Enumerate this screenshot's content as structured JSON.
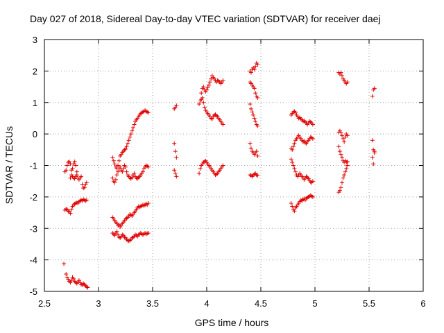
{
  "chart_data": {
    "type": "scatter",
    "title": "Day 027 of 2018, Sidereal Day-to-day VTEC variation (SDTVAR) for receiver daej",
    "xlabel": "GPS time / hours",
    "ylabel": "SDTVAR / TECUs",
    "xlim": [
      2.5,
      6
    ],
    "ylim": [
      -5,
      3
    ],
    "xticks": [
      2.5,
      3,
      3.5,
      4,
      4.5,
      5,
      5.5,
      6
    ],
    "yticks": [
      -5,
      -4,
      -3,
      -2,
      -1,
      0,
      1,
      2,
      3
    ],
    "xtick_labels": [
      "2.5",
      "3",
      "3.5",
      "4",
      "4.5",
      "5",
      "5.5",
      "6"
    ],
    "ytick_labels": [
      "-5",
      "-4",
      "-3",
      "-2",
      "-1",
      "0",
      "1",
      "2",
      "3"
    ],
    "grid": true,
    "marker": "+",
    "color": "#e00000",
    "series": [
      {
        "name": "s1",
        "x": [
          2.69,
          2.7,
          2.71,
          2.72,
          2.73,
          2.74,
          2.75,
          2.76,
          2.77,
          2.78,
          2.79,
          2.8,
          2.81,
          2.82,
          2.83,
          2.84,
          2.85,
          2.86,
          2.87,
          2.88,
          2.89
        ],
        "y": [
          -1.2,
          -1.15,
          -1.0,
          -0.9,
          -0.88,
          -0.95,
          -1.15,
          -1.35,
          -1.4,
          -1.42,
          -1.35,
          -1.3,
          -1.4,
          -1.45,
          -1.4,
          -1.35,
          -1.6,
          -1.72,
          -1.7,
          -1.6,
          -1.55
        ]
      },
      {
        "name": "s2",
        "x": [
          2.74,
          2.75,
          2.76,
          2.77,
          2.78,
          2.79,
          2.8
        ],
        "y": [
          -1.4,
          -1.3,
          -1.1,
          -0.95,
          -0.88,
          -1.0,
          -1.2
        ]
      },
      {
        "name": "s3",
        "x": [
          2.69,
          2.7,
          2.71,
          2.72,
          2.73,
          2.74,
          2.75,
          2.76,
          2.77,
          2.78,
          2.79,
          2.8,
          2.81,
          2.82,
          2.83,
          2.84,
          2.85,
          2.86,
          2.87,
          2.88,
          2.89
        ],
        "y": [
          -2.42,
          -2.38,
          -2.4,
          -2.45,
          -2.47,
          -2.52,
          -2.4,
          -2.3,
          -2.25,
          -2.22,
          -2.2,
          -2.18,
          -2.2,
          -2.15,
          -2.12,
          -2.1,
          -2.12,
          -2.08,
          -2.1,
          -2.12,
          -2.1
        ]
      },
      {
        "name": "s4",
        "x": [
          2.68,
          2.7,
          2.71,
          2.72,
          2.73,
          2.74,
          2.75,
          2.76,
          2.77,
          2.78,
          2.79,
          2.8,
          2.81,
          2.82,
          2.83,
          2.84,
          2.85,
          2.86,
          2.87,
          2.88,
          2.89,
          2.9
        ],
        "y": [
          -4.12,
          -4.45,
          -4.55,
          -4.62,
          -4.68,
          -4.72,
          -4.65,
          -4.55,
          -4.6,
          -4.68,
          -4.72,
          -4.75,
          -4.7,
          -4.65,
          -4.72,
          -4.78,
          -4.8,
          -4.75,
          -4.78,
          -4.82,
          -4.85,
          -4.88
        ]
      },
      {
        "name": "s5",
        "x": [
          3.13,
          3.14,
          3.15,
          3.16,
          3.17,
          3.18,
          3.19,
          3.2,
          3.21,
          3.22,
          3.23,
          3.24,
          3.25,
          3.26,
          3.27,
          3.28,
          3.29,
          3.3,
          3.31,
          3.32,
          3.33,
          3.34,
          3.35,
          3.36,
          3.37,
          3.38,
          3.39,
          3.4,
          3.41,
          3.42,
          3.43,
          3.44,
          3.45,
          3.46
        ],
        "y": [
          -0.75,
          -0.85,
          -0.95,
          -1.05,
          -1.1,
          -1.0,
          -0.85,
          -0.7,
          -0.65,
          -0.58,
          -0.55,
          -0.5,
          -0.48,
          -0.4,
          -0.3,
          -0.2,
          -0.1,
          0.0,
          0.1,
          0.2,
          0.3,
          0.4,
          0.45,
          0.5,
          0.55,
          0.6,
          0.65,
          0.68,
          0.7,
          0.72,
          0.75,
          0.72,
          0.7,
          0.68
        ]
      },
      {
        "name": "s6",
        "x": [
          3.13,
          3.14,
          3.15,
          3.16,
          3.17,
          3.18,
          3.19,
          3.2,
          3.21,
          3.22,
          3.23,
          3.24,
          3.25,
          3.26,
          3.27,
          3.28,
          3.29,
          3.3,
          3.31,
          3.32,
          3.33,
          3.34,
          3.35,
          3.36,
          3.37,
          3.38,
          3.39,
          3.4,
          3.41,
          3.42,
          3.43,
          3.44,
          3.45,
          3.46
        ],
        "y": [
          -1.4,
          -1.5,
          -1.55,
          -1.45,
          -1.3,
          -1.2,
          -1.1,
          -1.05,
          -1.15,
          -1.2,
          -1.1,
          -1.0,
          -1.05,
          -1.2,
          -1.3,
          -1.35,
          -1.4,
          -1.42,
          -1.38,
          -1.3,
          -1.25,
          -1.35,
          -1.4,
          -1.42,
          -1.38,
          -1.35,
          -1.3,
          -1.25,
          -1.2,
          -1.1,
          -1.05,
          -1.0,
          -1.02,
          -1.05
        ]
      },
      {
        "name": "s7",
        "x": [
          3.13,
          3.14,
          3.15,
          3.16,
          3.17,
          3.18,
          3.19,
          3.2,
          3.21,
          3.22,
          3.23,
          3.24,
          3.25,
          3.26,
          3.27,
          3.28,
          3.29,
          3.3,
          3.31,
          3.32,
          3.33,
          3.34,
          3.35,
          3.36,
          3.37,
          3.38,
          3.39,
          3.4,
          3.41,
          3.42,
          3.43,
          3.44,
          3.45,
          3.46
        ],
        "y": [
          -2.65,
          -2.7,
          -2.75,
          -2.8,
          -2.85,
          -2.9,
          -2.88,
          -2.95,
          -2.9,
          -2.85,
          -2.8,
          -2.75,
          -2.7,
          -2.68,
          -2.65,
          -2.6,
          -2.55,
          -2.58,
          -2.6,
          -2.55,
          -2.5,
          -2.45,
          -2.4,
          -2.35,
          -2.3,
          -2.32,
          -2.3,
          -2.28,
          -2.25,
          -2.28,
          -2.25,
          -2.22,
          -2.25,
          -2.2
        ]
      },
      {
        "name": "s8",
        "x": [
          3.13,
          3.14,
          3.15,
          3.16,
          3.17,
          3.18,
          3.19,
          3.2,
          3.21,
          3.22,
          3.23,
          3.24,
          3.25,
          3.26,
          3.27,
          3.28,
          3.29,
          3.3,
          3.31,
          3.32,
          3.33,
          3.34,
          3.35,
          3.36,
          3.37,
          3.38,
          3.39,
          3.4,
          3.41,
          3.42,
          3.43,
          3.44,
          3.45,
          3.46
        ],
        "y": [
          -3.15,
          -3.18,
          -3.22,
          -3.15,
          -3.1,
          -3.2,
          -3.28,
          -3.3,
          -3.25,
          -3.2,
          -3.22,
          -3.28,
          -3.3,
          -3.35,
          -3.38,
          -3.4,
          -3.38,
          -3.35,
          -3.3,
          -3.28,
          -3.25,
          -3.2,
          -3.22,
          -3.25,
          -3.2,
          -3.18,
          -3.15,
          -3.18,
          -3.2,
          -3.18,
          -3.15,
          -3.18,
          -3.16,
          -3.15
        ]
      },
      {
        "name": "s9",
        "x": [
          3.7,
          3.71,
          3.72,
          3.7,
          3.71,
          3.72,
          3.7,
          3.71,
          3.72
        ],
        "y": [
          0.8,
          0.85,
          0.9,
          -0.3,
          -0.55,
          -0.75,
          -1.15,
          -1.25,
          -1.35
        ]
      },
      {
        "name": "s10",
        "x": [
          3.95,
          3.96,
          3.97,
          3.98,
          3.99,
          4.0,
          4.01,
          4.02,
          4.03,
          4.04,
          4.05,
          4.06,
          4.07,
          4.08,
          4.09,
          4.1,
          4.11,
          4.12,
          4.13,
          4.14,
          4.15
        ],
        "y": [
          1.3,
          1.45,
          1.5,
          1.4,
          1.35,
          1.4,
          1.48,
          1.55,
          1.65,
          1.75,
          1.85,
          1.8,
          1.75,
          1.7,
          1.65,
          1.7,
          1.68,
          1.65,
          1.6,
          1.65,
          1.7
        ]
      },
      {
        "name": "s11",
        "x": [
          3.93,
          3.94,
          3.95,
          3.96,
          3.97,
          3.98,
          3.99,
          4.0,
          4.01,
          4.02,
          4.03,
          4.04,
          4.05,
          4.06,
          4.07,
          4.08,
          4.09,
          4.1,
          4.11,
          4.12,
          4.13,
          4.14,
          4.15
        ],
        "y": [
          0.95,
          1.05,
          1.1,
          1.15,
          1.0,
          0.85,
          0.75,
          0.7,
          0.65,
          0.6,
          0.55,
          0.5,
          0.48,
          0.55,
          0.6,
          0.62,
          0.58,
          0.55,
          0.5,
          0.45,
          0.4,
          0.35,
          0.3
        ]
      },
      {
        "name": "s12",
        "x": [
          3.93,
          3.94,
          3.95,
          3.96,
          3.97,
          3.98,
          3.99,
          4.0,
          4.01,
          4.02,
          4.03,
          4.04,
          4.05,
          4.06,
          4.07,
          4.08,
          4.09,
          4.1,
          4.11,
          4.12,
          4.13,
          4.14,
          4.15
        ],
        "y": [
          -1.25,
          -1.1,
          -1.0,
          -0.95,
          -0.9,
          -0.88,
          -0.85,
          -0.9,
          -0.95,
          -1.0,
          -1.05,
          -1.1,
          -1.15,
          -1.2,
          -1.25,
          -1.3,
          -1.28,
          -1.25,
          -1.2,
          -1.15,
          -1.1,
          -1.05,
          -1.0
        ]
      },
      {
        "name": "s13",
        "x": [
          4.4,
          4.41,
          4.42,
          4.43,
          4.44,
          4.45,
          4.46,
          4.47
        ],
        "y": [
          2.0,
          1.95,
          2.05,
          2.1,
          2.05,
          2.15,
          2.25,
          2.2
        ]
      },
      {
        "name": "s14",
        "x": [
          4.4,
          4.41,
          4.42,
          4.43,
          4.44,
          4.45,
          4.46,
          4.47
        ],
        "y": [
          1.65,
          1.6,
          1.55,
          1.5,
          1.45,
          1.3,
          1.2,
          1.15
        ]
      },
      {
        "name": "s15",
        "x": [
          4.4,
          4.41,
          4.42,
          4.43,
          4.44,
          4.45,
          4.46,
          4.47
        ],
        "y": [
          0.95,
          0.8,
          0.7,
          0.6,
          0.5,
          0.4,
          0.3,
          0.25
        ]
      },
      {
        "name": "s16",
        "x": [
          4.4,
          4.41,
          4.42,
          4.43,
          4.44,
          4.45,
          4.46,
          4.47
        ],
        "y": [
          -0.3,
          -0.45,
          -0.55,
          -0.6,
          -0.65,
          -0.6,
          -0.55,
          -0.7
        ]
      },
      {
        "name": "s17",
        "x": [
          4.4,
          4.41,
          4.42,
          4.43,
          4.44,
          4.45,
          4.46,
          4.47
        ],
        "y": [
          -1.3,
          -1.32,
          -1.35,
          -1.3,
          -1.28,
          -1.25,
          -1.3,
          -1.32
        ]
      },
      {
        "name": "s18",
        "x": [
          4.78,
          4.79,
          4.8,
          4.81,
          4.82,
          4.83,
          4.84,
          4.85,
          4.86,
          4.87,
          4.88,
          4.89,
          4.9,
          4.91,
          4.92,
          4.93,
          4.94,
          4.95,
          4.96,
          4.97,
          4.98
        ],
        "y": [
          0.6,
          0.65,
          0.7,
          0.72,
          0.68,
          0.6,
          0.55,
          0.5,
          0.52,
          0.48,
          0.45,
          0.4,
          0.42,
          0.38,
          0.35,
          0.3,
          0.35,
          0.4,
          0.38,
          0.35,
          0.3
        ]
      },
      {
        "name": "s19",
        "x": [
          4.78,
          4.79,
          4.8,
          4.81,
          4.82,
          4.83,
          4.84,
          4.85,
          4.86,
          4.87,
          4.88,
          4.89,
          4.9,
          4.91,
          4.92,
          4.93,
          4.94,
          4.95,
          4.96,
          4.97,
          4.98
        ],
        "y": [
          -0.45,
          -0.5,
          -0.4,
          -0.3,
          -0.2,
          -0.15,
          -0.1,
          -0.05,
          -0.1,
          -0.15,
          -0.2,
          -0.25,
          -0.22,
          -0.28,
          -0.3,
          -0.25,
          -0.2,
          -0.15,
          -0.1,
          -0.12,
          -0.15
        ]
      },
      {
        "name": "s20",
        "x": [
          4.78,
          4.79,
          4.8,
          4.81,
          4.82,
          4.83,
          4.84,
          4.85,
          4.86,
          4.87,
          4.88,
          4.89,
          4.9,
          4.91,
          4.92,
          4.93,
          4.94,
          4.95,
          4.96,
          4.97,
          4.98
        ],
        "y": [
          -0.8,
          -0.9,
          -1.0,
          -1.1,
          -1.2,
          -1.3,
          -1.35,
          -1.3,
          -1.25,
          -1.3,
          -1.35,
          -1.4,
          -1.45,
          -1.4,
          -1.35,
          -1.38,
          -1.42,
          -1.48,
          -1.52,
          -1.55,
          -1.5
        ]
      },
      {
        "name": "s21",
        "x": [
          4.78,
          4.79,
          4.8,
          4.81,
          4.82,
          4.83,
          4.84,
          4.85,
          4.86,
          4.87,
          4.88,
          4.89,
          4.9,
          4.91,
          4.92,
          4.93,
          4.94,
          4.95,
          4.96,
          4.97,
          4.98
        ],
        "y": [
          -2.2,
          -2.3,
          -2.4,
          -2.45,
          -2.35,
          -2.3,
          -2.25,
          -2.2,
          -2.15,
          -2.1,
          -2.12,
          -2.08,
          -2.05,
          -2.1,
          -2.05,
          -2.02,
          -2.0,
          -1.98,
          -1.95,
          -1.98,
          -2.0
        ]
      },
      {
        "name": "s22",
        "x": [
          5.22,
          5.23,
          5.24,
          5.25,
          5.26,
          5.27,
          5.28,
          5.29,
          5.3
        ],
        "y": [
          1.95,
          1.9,
          1.95,
          1.85,
          1.75,
          1.7,
          1.65,
          1.6,
          1.65
        ]
      },
      {
        "name": "s23",
        "x": [
          5.22,
          5.23,
          5.24,
          5.25,
          5.26,
          5.27,
          5.28,
          5.29,
          5.3
        ],
        "y": [
          0.05,
          0.1,
          0.05,
          -0.05,
          -0.15,
          -0.25,
          -0.1,
          0.0,
          -0.05
        ]
      },
      {
        "name": "s24",
        "x": [
          5.22,
          5.23,
          5.24,
          5.25,
          5.26,
          5.27,
          5.28,
          5.29,
          5.3
        ],
        "y": [
          -0.4,
          -0.55,
          -0.65,
          -0.75,
          -0.85,
          -0.9,
          -0.85,
          -0.9,
          -0.88
        ]
      },
      {
        "name": "s25",
        "x": [
          5.22,
          5.23,
          5.24,
          5.25,
          5.26,
          5.27,
          5.28,
          5.29,
          5.3
        ],
        "y": [
          -1.85,
          -1.8,
          -1.7,
          -1.55,
          -1.4,
          -1.3,
          -1.2,
          -1.1,
          -1.0
        ]
      },
      {
        "name": "s26",
        "x": [
          5.53,
          5.54,
          5.55,
          5.53,
          5.54,
          5.55,
          5.53,
          5.54,
          5.55
        ],
        "y": [
          1.2,
          1.4,
          1.45,
          -0.2,
          -0.5,
          -0.6,
          -0.75,
          -0.95,
          -0.55
        ]
      }
    ]
  }
}
